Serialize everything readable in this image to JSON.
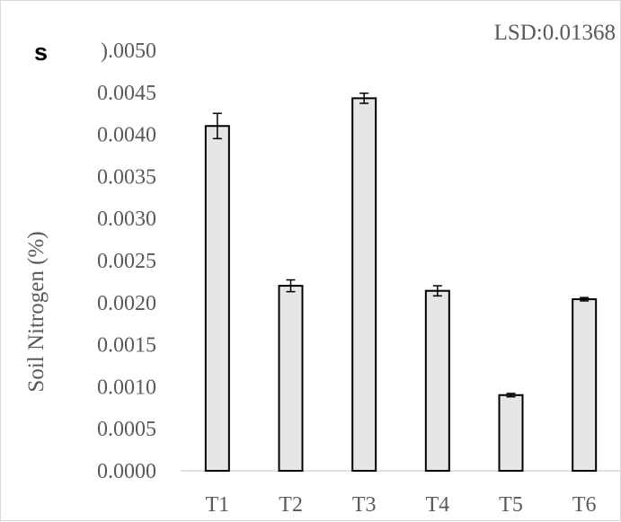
{
  "panel_label": "s",
  "chart_data": {
    "type": "bar",
    "title": "",
    "xlabel": "",
    "ylabel": "Soil Nitrogen (%)",
    "ylim": [
      0,
      0.005
    ],
    "y_ticks": [
      "0.0000",
      "0.0005",
      "0.0010",
      "0.0015",
      "0.0020",
      "0.0025",
      "0.0030",
      "0.0035",
      "0.0040",
      "0.0045",
      "0.0050"
    ],
    "top_tick_display": ").0050",
    "categories": [
      "T1",
      "T2",
      "T3",
      "T4",
      "T5",
      "T6"
    ],
    "values": [
      0.0041,
      0.0022,
      0.00443,
      0.00214,
      0.0009,
      0.00204
    ],
    "errors": [
      0.00015,
      7e-05,
      6e-05,
      6e-05,
      2e-05,
      2e-05
    ],
    "annotation": "LSD:0.01368",
    "bar_fill": "#e7e6e6",
    "bar_stroke": "#000000",
    "axis_color": "#d9d9d9",
    "text_color": "#595959",
    "grid": false,
    "legend": "none"
  }
}
